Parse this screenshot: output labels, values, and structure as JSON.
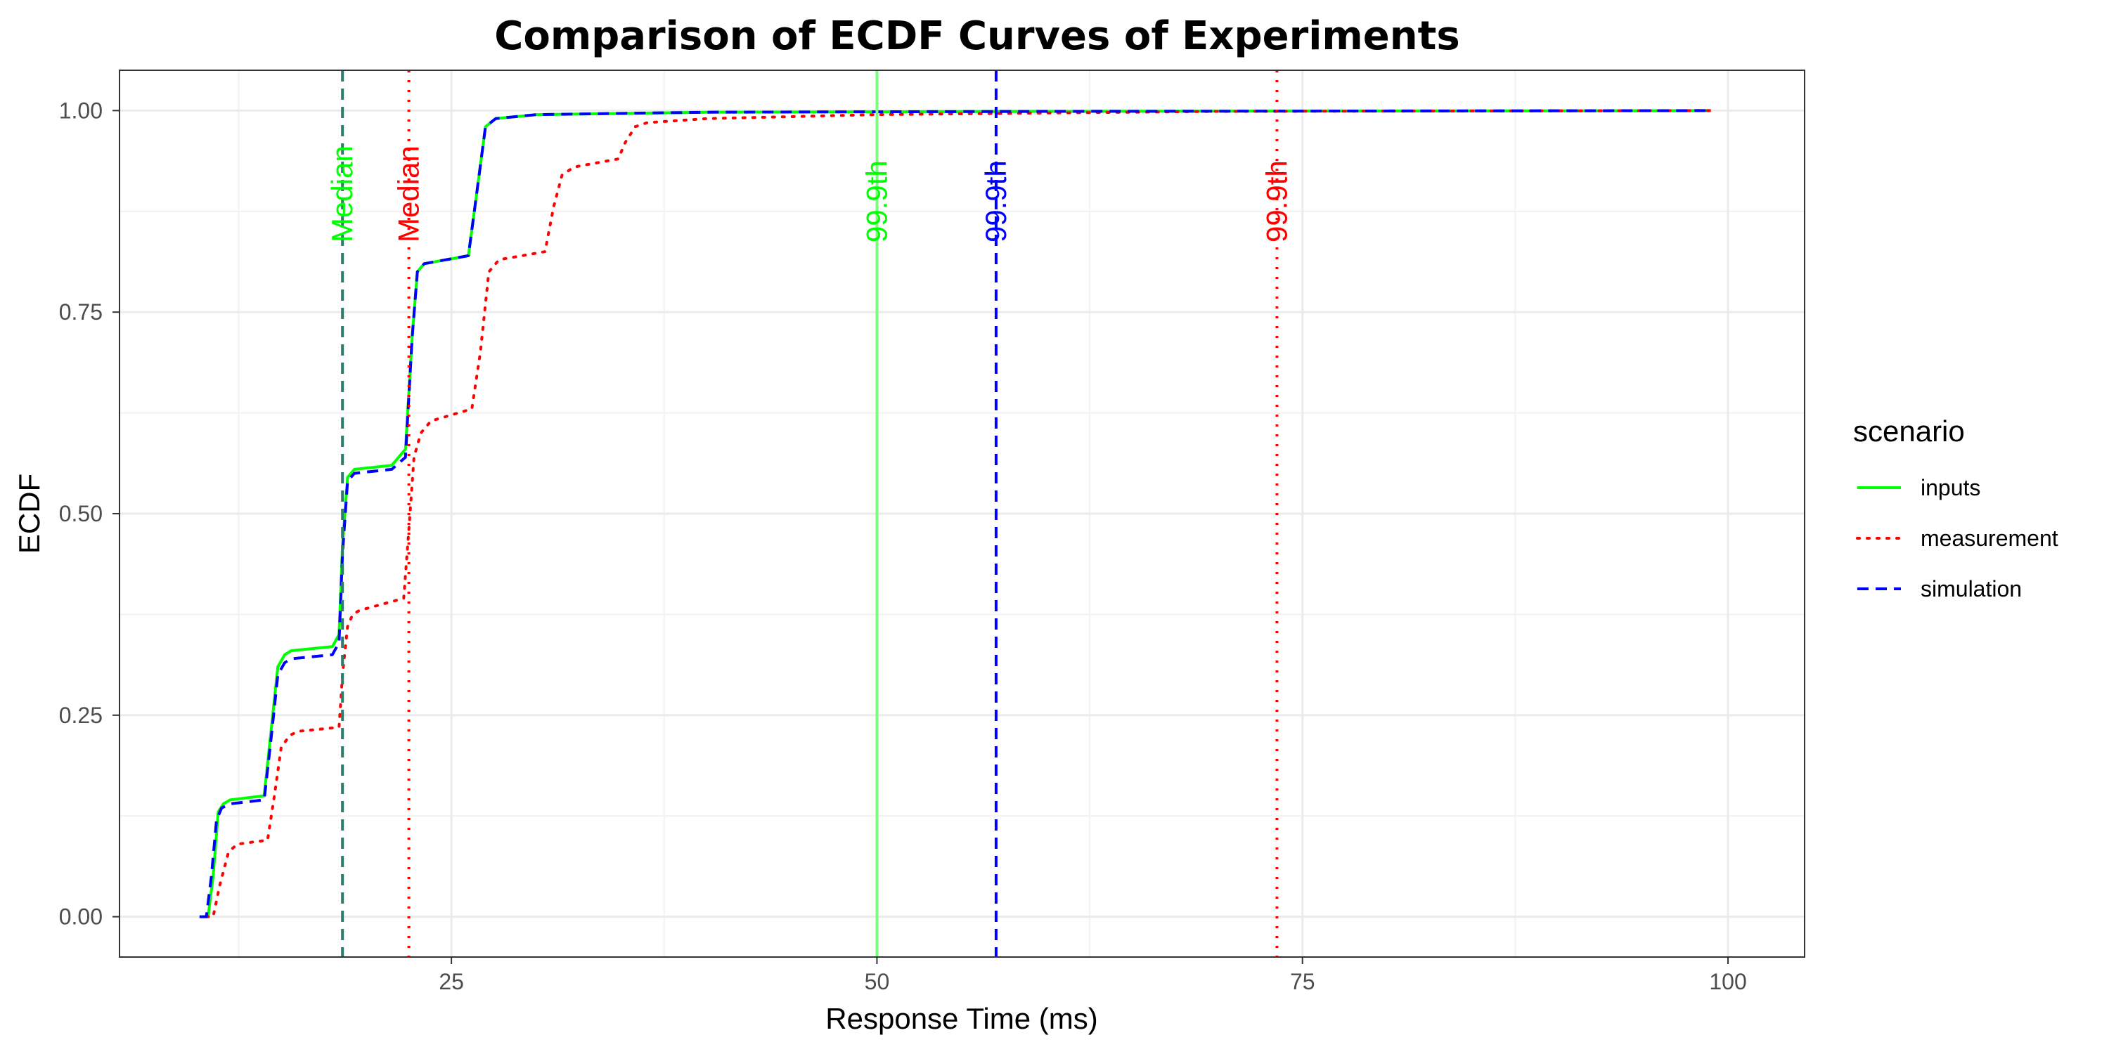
{
  "chart_data": {
    "type": "line",
    "title": "Comparison of ECDF Curves of Experiments",
    "xlabel": "Response Time (ms)",
    "ylabel": "ECDF",
    "xlim": [
      5.5,
      104.5
    ],
    "ylim": [
      -0.05,
      1.05
    ],
    "x_ticks": [
      25,
      50,
      75,
      100
    ],
    "x_tick_labels": [
      "25",
      "50",
      "75",
      "100"
    ],
    "y_ticks": [
      0,
      0.25,
      0.5,
      0.75,
      1.0
    ],
    "y_tick_labels": [
      "0.00",
      "0.25",
      "0.50",
      "0.75",
      "1.00"
    ],
    "grid": true,
    "legend": {
      "title": "scenario",
      "position": "right",
      "entries": [
        "inputs",
        "measurement",
        "simulation"
      ]
    },
    "series": [
      {
        "name": "inputs",
        "color": "#00ff00",
        "dash": "solid",
        "x": [
          10.4,
          10.7,
          11.0,
          11.3,
          11.6,
          12.0,
          14.0,
          14.4,
          14.8,
          15.2,
          15.6,
          18.0,
          18.4,
          18.6,
          18.9,
          19.3,
          21.5,
          22.3,
          22.7,
          23.0,
          23.4,
          26.0,
          26.5,
          27.0,
          27.6,
          30.0,
          40.0,
          60.0,
          99.0
        ],
        "y": [
          0.0,
          0.0,
          0.05,
          0.13,
          0.14,
          0.145,
          0.15,
          0.23,
          0.31,
          0.325,
          0.33,
          0.335,
          0.35,
          0.46,
          0.545,
          0.555,
          0.56,
          0.58,
          0.72,
          0.8,
          0.81,
          0.82,
          0.9,
          0.98,
          0.99,
          0.995,
          0.998,
          0.999,
          1.0
        ]
      },
      {
        "name": "measurement",
        "color": "#ff0000",
        "dash": "dot",
        "x": [
          10.6,
          11.0,
          11.4,
          11.9,
          12.4,
          14.2,
          14.6,
          15.0,
          15.5,
          16.0,
          18.4,
          18.6,
          18.9,
          19.2,
          19.6,
          22.2,
          22.5,
          22.8,
          23.2,
          23.8,
          26.2,
          26.7,
          27.2,
          27.8,
          30.5,
          31.0,
          31.5,
          32.2,
          34.8,
          35.2,
          35.8,
          36.5,
          40.0,
          50.0,
          70.0,
          99.0
        ],
        "y": [
          0.0,
          0.0,
          0.04,
          0.08,
          0.09,
          0.095,
          0.15,
          0.21,
          0.225,
          0.23,
          0.235,
          0.3,
          0.36,
          0.375,
          0.38,
          0.395,
          0.48,
          0.57,
          0.6,
          0.615,
          0.63,
          0.7,
          0.8,
          0.815,
          0.825,
          0.88,
          0.92,
          0.93,
          0.94,
          0.96,
          0.98,
          0.985,
          0.99,
          0.995,
          0.999,
          1.0
        ]
      },
      {
        "name": "simulation",
        "color": "#0000ff",
        "dash": "dash",
        "x": [
          10.2,
          10.6,
          10.9,
          11.2,
          11.5,
          12.0,
          14.0,
          14.4,
          14.8,
          15.2,
          15.6,
          18.0,
          18.4,
          18.6,
          18.9,
          19.3,
          21.5,
          22.3,
          22.7,
          23.0,
          23.4,
          26.0,
          26.5,
          27.0,
          27.6,
          30.0,
          40.0,
          60.0,
          99.0
        ],
        "y": [
          0.0,
          0.0,
          0.05,
          0.12,
          0.135,
          0.14,
          0.145,
          0.22,
          0.3,
          0.315,
          0.32,
          0.325,
          0.34,
          0.45,
          0.54,
          0.55,
          0.555,
          0.57,
          0.72,
          0.8,
          0.81,
          0.82,
          0.9,
          0.98,
          0.99,
          0.995,
          0.998,
          0.999,
          1.0
        ]
      }
    ],
    "vlines": [
      {
        "series": "inputs",
        "x": 18.6,
        "label": "Median",
        "color": "#2e7d6e",
        "label_color": "#00ff00",
        "dash": "dash"
      },
      {
        "series": "measurement",
        "x": 22.5,
        "label": "Median",
        "color": "#ff0000",
        "label_color": "#ff0000",
        "dash": "dot"
      },
      {
        "series": "inputs",
        "x": 50.0,
        "label": "99.9th",
        "color": "#7dff7d",
        "label_color": "#00ff00",
        "dash": "solid"
      },
      {
        "series": "simulation",
        "x": 57.0,
        "label": "99.9th",
        "color": "#0000ff",
        "label_color": "#0000ff",
        "dash": "dash"
      },
      {
        "series": "measurement",
        "x": 73.5,
        "label": "99.9th",
        "color": "#ff0000",
        "label_color": "#ff0000",
        "dash": "dot"
      }
    ]
  }
}
